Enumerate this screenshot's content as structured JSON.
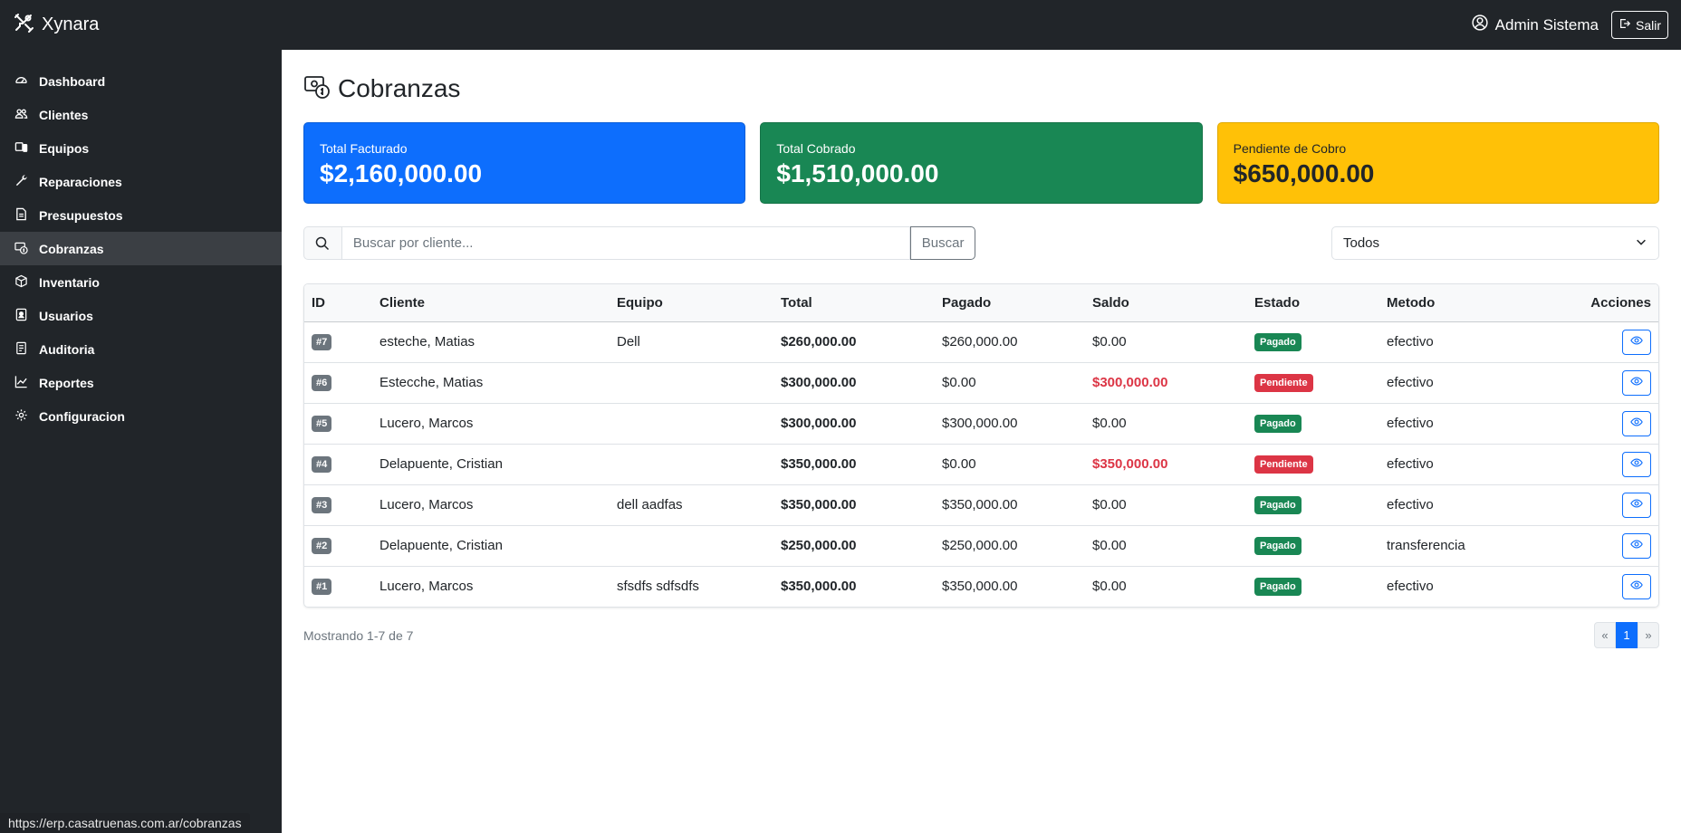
{
  "app": {
    "brand": "Xynara",
    "brand_icon": "tools-icon"
  },
  "header": {
    "user_name": "Admin Sistema",
    "logout_label": "Salir"
  },
  "sidebar": {
    "items": [
      {
        "label": "Dashboard",
        "icon": "speedometer-icon"
      },
      {
        "label": "Clientes",
        "icon": "people-icon"
      },
      {
        "label": "Equipos",
        "icon": "devices-icon"
      },
      {
        "label": "Reparaciones",
        "icon": "wrench-icon"
      },
      {
        "label": "Presupuestos",
        "icon": "document-icon"
      },
      {
        "label": "Cobranzas",
        "icon": "cash-icon",
        "active": true
      },
      {
        "label": "Inventario",
        "icon": "box-icon"
      },
      {
        "label": "Usuarios",
        "icon": "user-badge-icon"
      },
      {
        "label": "Auditoria",
        "icon": "journal-icon"
      },
      {
        "label": "Reportes",
        "icon": "chart-line-icon"
      },
      {
        "label": "Configuracion",
        "icon": "gear-icon"
      }
    ]
  },
  "page": {
    "title": "Cobranzas"
  },
  "cards": {
    "facturado": {
      "label": "Total Facturado",
      "value": "$2,160,000.00",
      "color": "#0d6efd"
    },
    "cobrado": {
      "label": "Total Cobrado",
      "value": "$1,510,000.00",
      "color": "#198754"
    },
    "pendiente": {
      "label": "Pendiente de Cobro",
      "value": "$650,000.00",
      "color": "#ffc107"
    }
  },
  "search": {
    "placeholder": "Buscar por cliente...",
    "value": "",
    "button": "Buscar"
  },
  "filter": {
    "selected": "Todos"
  },
  "table": {
    "headers": {
      "id": "ID",
      "cliente": "Cliente",
      "equipo": "Equipo",
      "total": "Total",
      "pagado": "Pagado",
      "saldo": "Saldo",
      "estado": "Estado",
      "metodo": "Metodo",
      "acciones": "Acciones"
    },
    "rows": [
      {
        "id": "#7",
        "cliente": "esteche, Matias",
        "equipo": "Dell",
        "total": "$260,000.00",
        "pagado": "$260,000.00",
        "saldo": "$0.00",
        "estado": "Pagado",
        "metodo": "efectivo"
      },
      {
        "id": "#6",
        "cliente": "Estecche, Matias",
        "equipo": "",
        "total": "$300,000.00",
        "pagado": "$0.00",
        "saldo": "$300,000.00",
        "estado": "Pendiente",
        "metodo": "efectivo"
      },
      {
        "id": "#5",
        "cliente": "Lucero, Marcos",
        "equipo": "",
        "total": "$300,000.00",
        "pagado": "$300,000.00",
        "saldo": "$0.00",
        "estado": "Pagado",
        "metodo": "efectivo"
      },
      {
        "id": "#4",
        "cliente": "Delapuente, Cristian",
        "equipo": "",
        "total": "$350,000.00",
        "pagado": "$0.00",
        "saldo": "$350,000.00",
        "estado": "Pendiente",
        "metodo": "efectivo"
      },
      {
        "id": "#3",
        "cliente": "Lucero, Marcos",
        "equipo": "dell aadfas",
        "total": "$350,000.00",
        "pagado": "$350,000.00",
        "saldo": "$0.00",
        "estado": "Pagado",
        "metodo": "efectivo"
      },
      {
        "id": "#2",
        "cliente": "Delapuente, Cristian",
        "equipo": "",
        "total": "$250,000.00",
        "pagado": "$250,000.00",
        "saldo": "$0.00",
        "estado": "Pagado",
        "metodo": "transferencia"
      },
      {
        "id": "#1",
        "cliente": "Lucero, Marcos",
        "equipo": "sfsdfs sdfsdfs",
        "total": "$350,000.00",
        "pagado": "$350,000.00",
        "saldo": "$0.00",
        "estado": "Pagado",
        "metodo": "efectivo"
      }
    ]
  },
  "footer": {
    "showing": "Mostrando 1-7 de 7",
    "prev": "«",
    "current_page": "1",
    "next": "»"
  },
  "statusbar": {
    "url": "https://erp.casatruenas.com.ar/cobranzas"
  }
}
